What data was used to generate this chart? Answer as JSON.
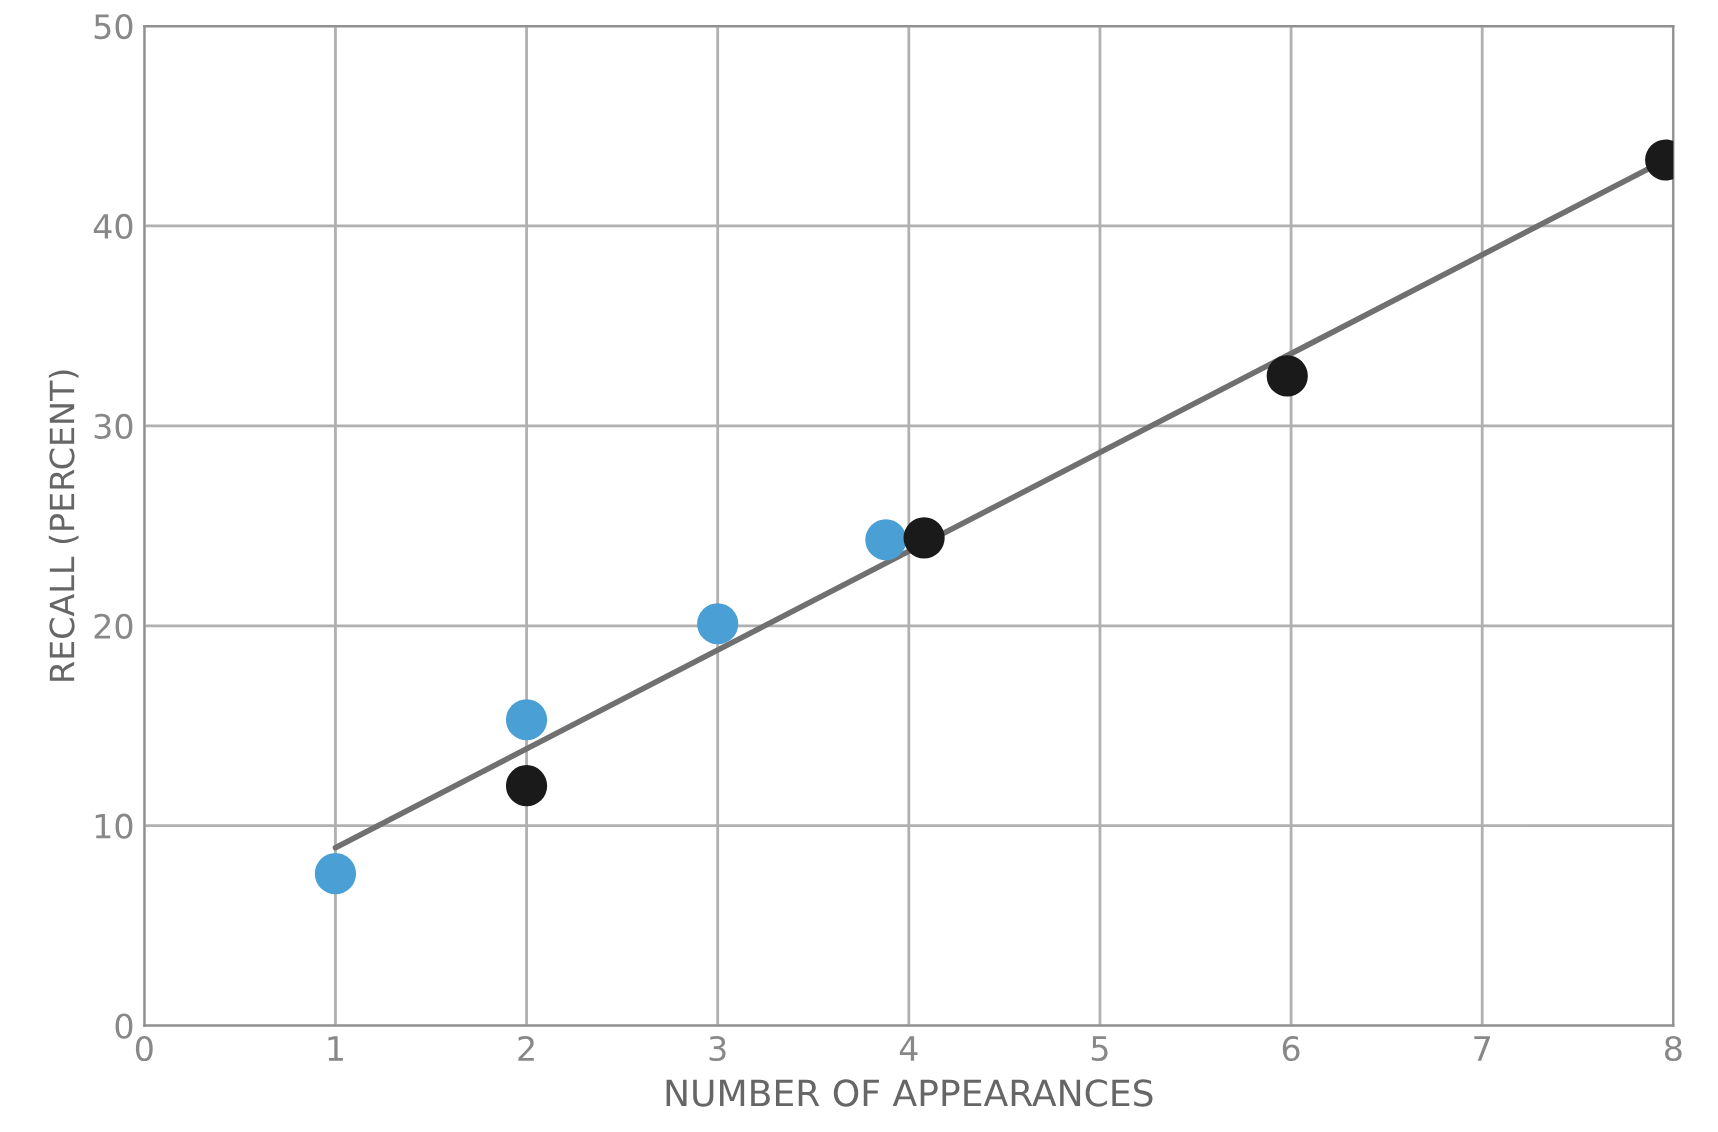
{
  "chart_data": {
    "type": "scatter",
    "xlabel": "NUMBER OF APPEARANCES",
    "ylabel": "RECALL (PERCENT)",
    "series": [
      {
        "color": "#4a9fd4",
        "x": [
          1.0,
          2.0,
          3.0,
          3.88
        ],
        "values": [
          7.6,
          15.3,
          20.1,
          24.3
        ]
      },
      {
        "color": "#1a1a1a",
        "x": [
          2.0,
          4.08,
          5.98,
          7.96
        ],
        "values": [
          12.0,
          24.4,
          32.5,
          43.3
        ]
      },
      {
        "type": "line",
        "marker": "none",
        "color": "#707070",
        "x": [
          1,
          8
        ],
        "values": [
          8.9,
          43.5
        ]
      }
    ],
    "xlim": [
      0,
      8
    ],
    "ylim": [
      0,
      50
    ],
    "xticks": [
      0,
      1,
      2,
      3,
      4,
      5,
      6,
      7,
      8
    ],
    "yticks": [
      0,
      10,
      20,
      30,
      40,
      50
    ],
    "grid": true,
    "marker": "circle"
  }
}
